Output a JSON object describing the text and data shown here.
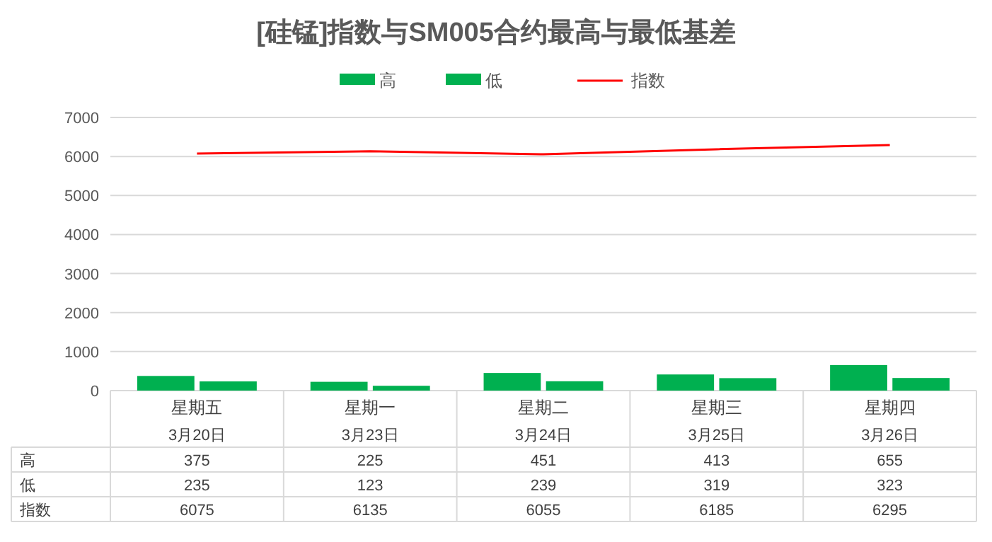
{
  "chart_data": {
    "type": "bar",
    "title": "[硅锰]指数与SM005合约最高与最低基差",
    "categories": [
      "星期五\n3月20日",
      "星期一\n3月23日",
      "星期二\n3月24日",
      "星期三\n3月25日",
      "星期四\n3月26日"
    ],
    "series": [
      {
        "name": "高",
        "color": "#00b050",
        "values": [
          375,
          225,
          451,
          413,
          655
        ]
      },
      {
        "name": "低",
        "color": "#00b050",
        "values": [
          235,
          123,
          239,
          319,
          323
        ]
      },
      {
        "name": "指数",
        "type": "line",
        "color": "#ff0000",
        "values": [
          6075,
          6135,
          6055,
          6185,
          6295
        ]
      }
    ],
    "ylim": [
      0,
      7000
    ],
    "yticks": [
      0,
      1000,
      2000,
      3000,
      4000,
      5000,
      6000,
      7000
    ],
    "grid": "y",
    "legend": "top",
    "data_labels": true
  }
}
